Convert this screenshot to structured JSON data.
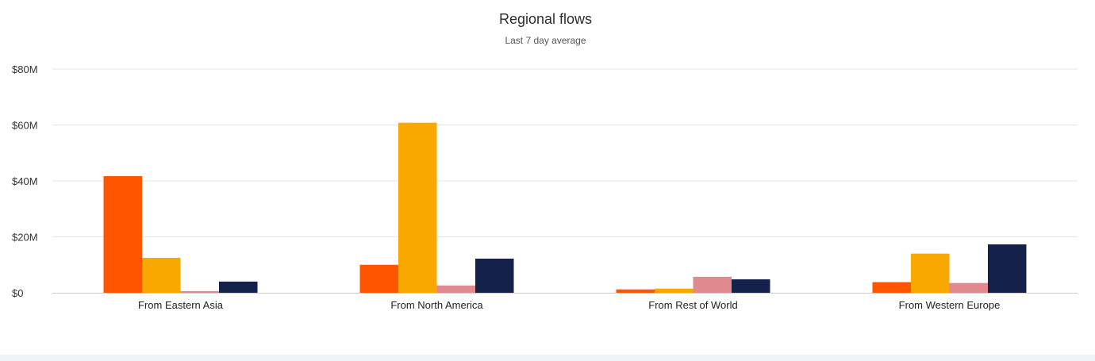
{
  "chart_data": {
    "type": "bar",
    "title": "Regional flows",
    "subtitle": "Last 7 day average",
    "categories": [
      "From Eastern Asia",
      "From North America",
      "From Rest of World",
      "From Western Europe"
    ],
    "series": [
      {
        "color": "#ff5500",
        "values": [
          41.7,
          10.0,
          1.2,
          3.8
        ]
      },
      {
        "color": "#f9a800",
        "values": [
          12.5,
          60.8,
          1.5,
          14.0
        ]
      },
      {
        "color": "#e08a8f",
        "values": [
          0.6,
          2.6,
          5.7,
          3.5
        ]
      },
      {
        "color": "#14214b",
        "values": [
          4.0,
          12.2,
          4.8,
          17.3
        ]
      }
    ],
    "yticks": [
      {
        "value": 0,
        "label": "$0"
      },
      {
        "value": 20,
        "label": "$20M"
      },
      {
        "value": 40,
        "label": "$40M"
      },
      {
        "value": 60,
        "label": "$60M"
      },
      {
        "value": 80,
        "label": "$80M"
      }
    ],
    "ylim": [
      0,
      80
    ],
    "xlabel": "",
    "ylabel": "",
    "grid": true,
    "legend": "none"
  }
}
